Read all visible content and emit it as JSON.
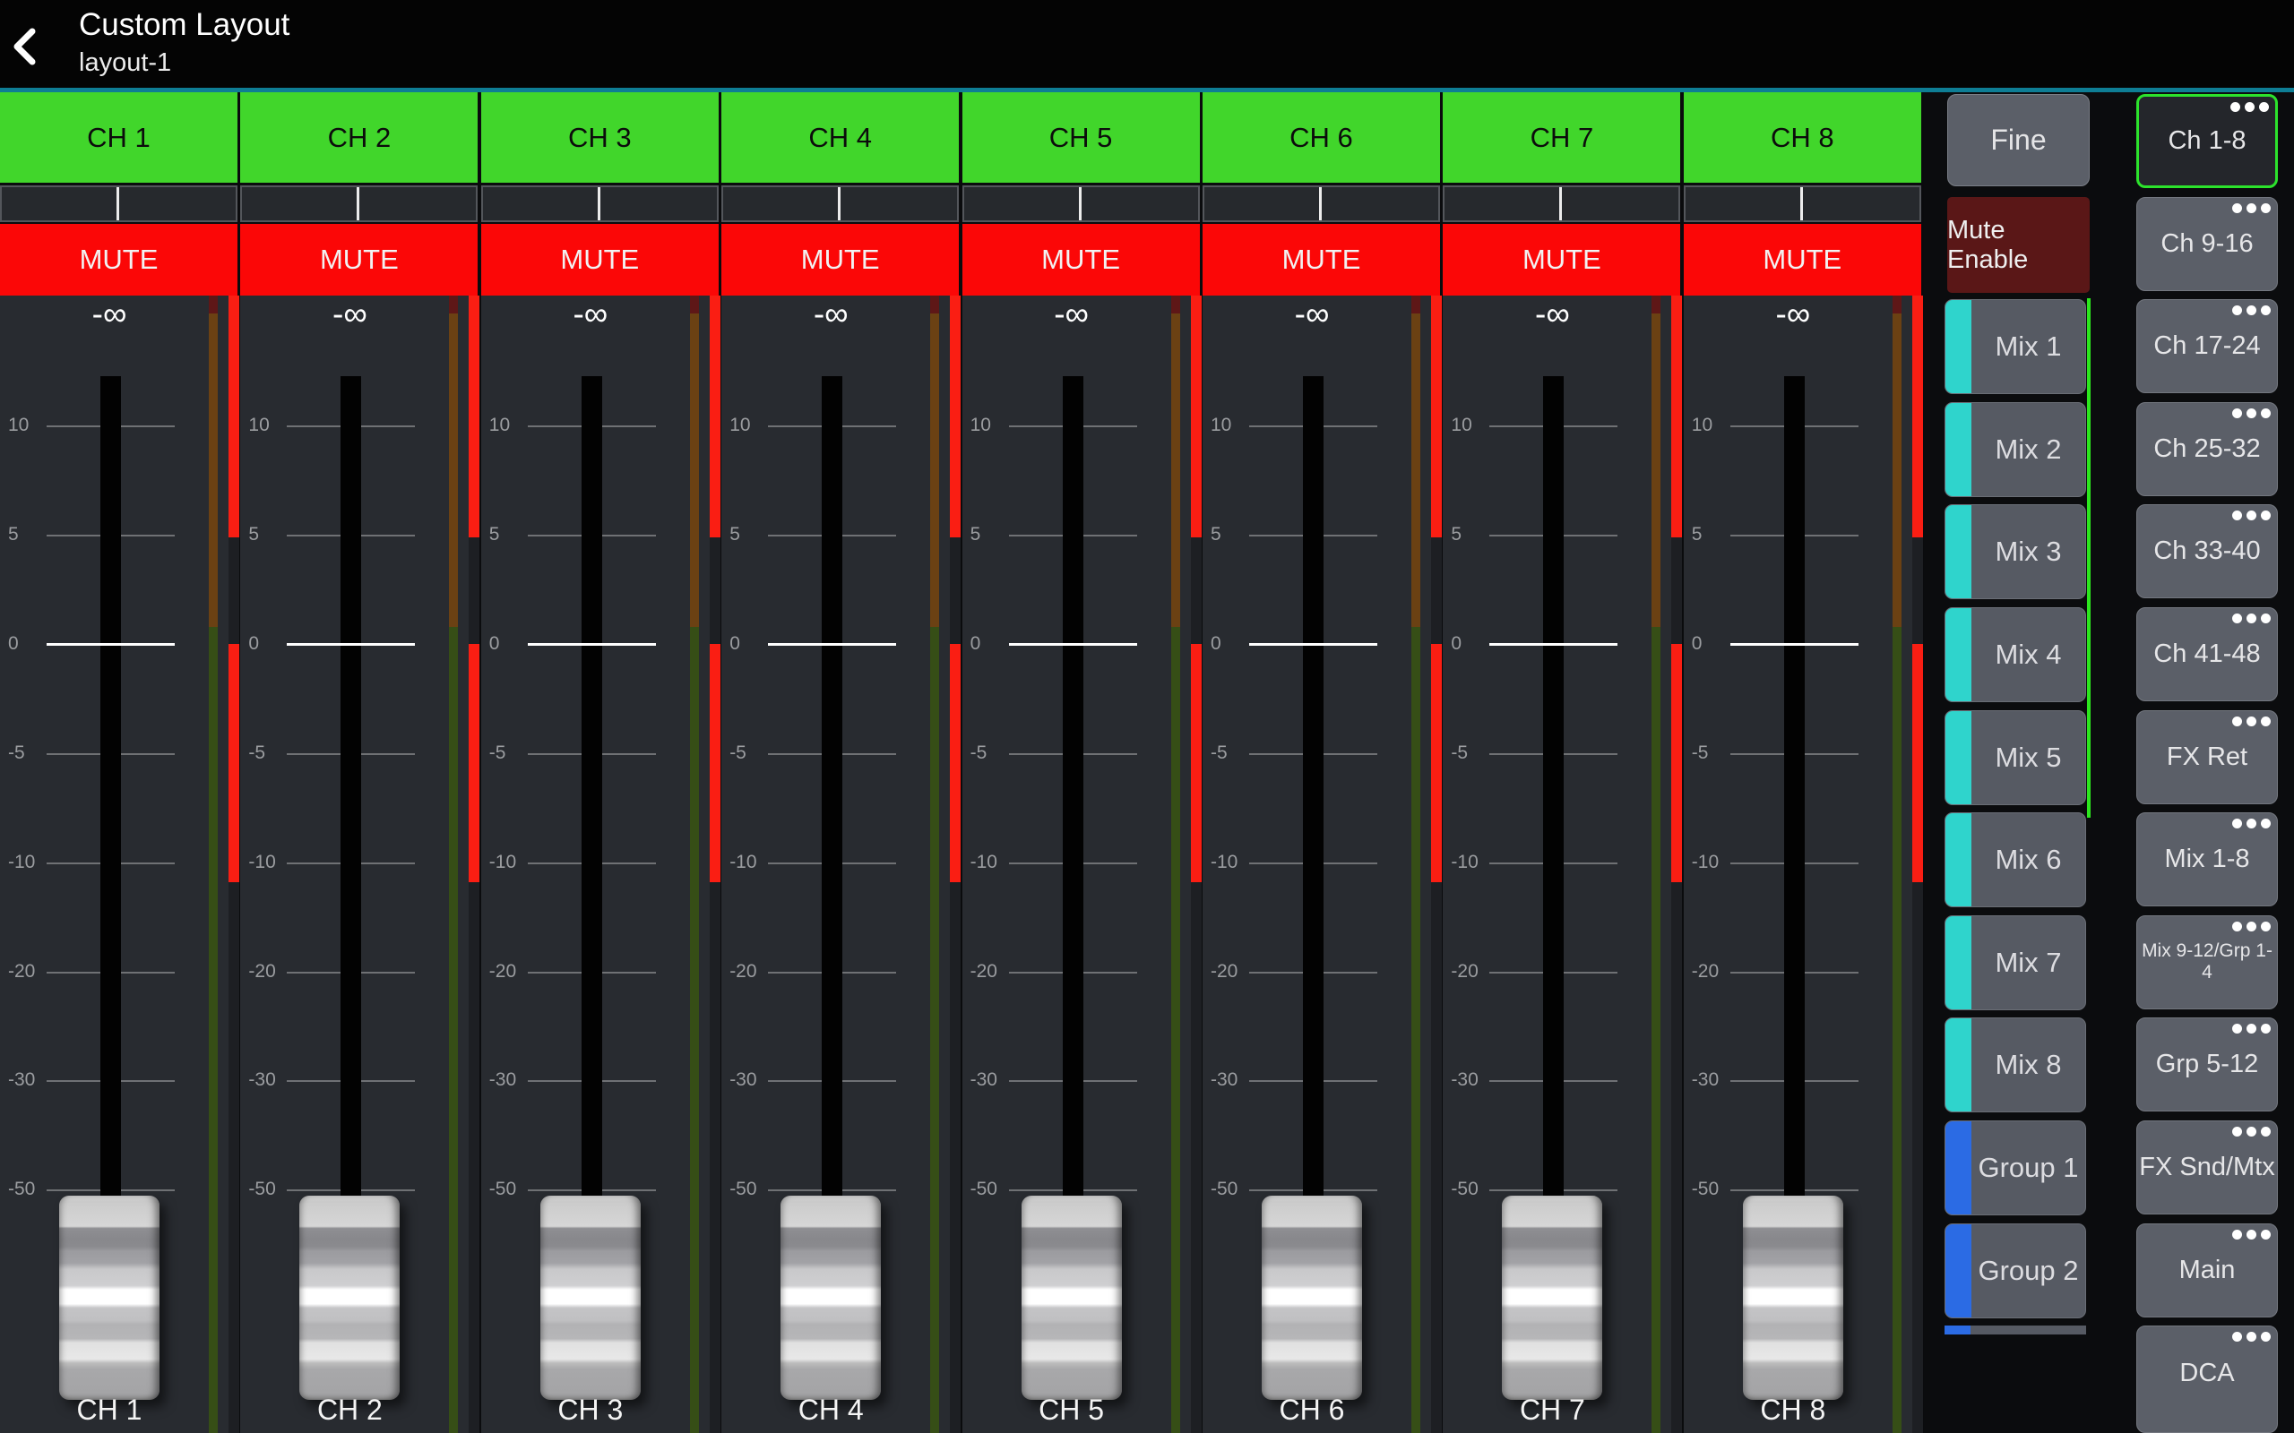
{
  "header": {
    "title": "Custom Layout",
    "subtitle": "layout-1"
  },
  "channel_ui": {
    "mute_label": "MUTE",
    "level_value": "-∞"
  },
  "channels": [
    {
      "name": "CH 1"
    },
    {
      "name": "CH 2"
    },
    {
      "name": "CH 3"
    },
    {
      "name": "CH 4"
    },
    {
      "name": "CH 5"
    },
    {
      "name": "CH 6"
    },
    {
      "name": "CH 7"
    },
    {
      "name": "CH 8"
    }
  ],
  "fader_scale": [
    "10",
    "5",
    "0",
    "-5",
    "-10",
    "-20",
    "-30",
    "-50"
  ],
  "controls": {
    "fine_label": "Fine",
    "mute_enable_label": "Mute Enable",
    "sends": [
      {
        "label": "Mix 1",
        "color": "teal"
      },
      {
        "label": "Mix 2",
        "color": "teal"
      },
      {
        "label": "Mix 3",
        "color": "teal"
      },
      {
        "label": "Mix 4",
        "color": "teal"
      },
      {
        "label": "Mix 5",
        "color": "teal"
      },
      {
        "label": "Mix 6",
        "color": "teal"
      },
      {
        "label": "Mix 7",
        "color": "teal"
      },
      {
        "label": "Mix 8",
        "color": "teal"
      },
      {
        "label": "Group 1",
        "color": "blue"
      },
      {
        "label": "Group 2",
        "color": "blue"
      }
    ]
  },
  "banks": {
    "items": [
      {
        "label": "Ch 1-8",
        "selected": true
      },
      {
        "label": "Ch 9-16"
      },
      {
        "label": "Ch 17-24"
      },
      {
        "label": "Ch 25-32"
      },
      {
        "label": "Ch 33-40"
      },
      {
        "label": "Ch 41-48"
      },
      {
        "label": "FX Ret"
      },
      {
        "label": "Mix 1-8"
      },
      {
        "label": "Mix 9-12/Grp 1-4",
        "small": true
      },
      {
        "label": "Grp 5-12"
      },
      {
        "label": "FX Snd/Mtx"
      },
      {
        "label": "Main"
      },
      {
        "label": "DCA"
      }
    ]
  },
  "colors": {
    "header_green": "#41d62b",
    "mute_red": "#fb0707",
    "selected_bank_green": "#2ce32c",
    "scroll_indicator_green": "#2ce61e",
    "send_teal": "#2fd4cc",
    "send_blue": "#2b6be4",
    "meter_red": "#fa1e13",
    "meter_brown": "#6b4113",
    "meter_dark_green": "#364e16",
    "meter_dark_red": "#5e1717",
    "top_divider_teal": "#0e7e95",
    "mute_enable_maroon": "#5a1717",
    "button_gray": "#5b5f68"
  }
}
